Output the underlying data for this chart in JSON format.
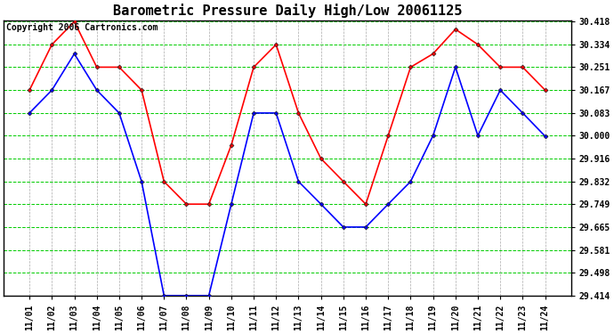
{
  "title": "Barometric Pressure Daily High/Low 20061125",
  "copyright": "Copyright 2006 Cartronics.com",
  "x_labels": [
    "11/01",
    "11/02",
    "11/03",
    "11/04",
    "11/05",
    "11/06",
    "11/07",
    "11/08",
    "11/09",
    "11/10",
    "11/11",
    "11/12",
    "11/13",
    "11/14",
    "11/15",
    "11/16",
    "11/17",
    "11/18",
    "11/19",
    "11/20",
    "11/21",
    "11/22",
    "11/23",
    "11/24"
  ],
  "high_values": [
    30.167,
    30.334,
    30.418,
    30.251,
    30.251,
    30.167,
    29.832,
    29.749,
    29.749,
    29.965,
    30.251,
    30.334,
    30.083,
    29.916,
    29.832,
    29.749,
    30.0,
    30.251,
    30.3,
    30.39,
    30.334,
    30.251,
    30.251,
    30.167
  ],
  "low_values": [
    30.083,
    30.167,
    30.3,
    30.167,
    30.083,
    29.832,
    29.414,
    29.414,
    29.414,
    29.749,
    30.083,
    30.083,
    29.832,
    29.749,
    29.665,
    29.665,
    29.749,
    29.832,
    30.0,
    30.251,
    30.0,
    30.167,
    30.083,
    29.998
  ],
  "high_color": "#ff0000",
  "low_color": "#0000ff",
  "bg_color": "#ffffff",
  "grid_major_color": "#00cc00",
  "grid_minor_color": "#aaaaaa",
  "y_min": 29.414,
  "y_max": 30.418,
  "y_ticks": [
    29.414,
    29.498,
    29.581,
    29.665,
    29.749,
    29.832,
    29.916,
    30.0,
    30.083,
    30.167,
    30.251,
    30.334,
    30.418
  ],
  "title_fontsize": 11,
  "copyright_fontsize": 7,
  "tick_fontsize": 7,
  "marker": "D",
  "marker_size": 2.5,
  "line_width": 1.2
}
